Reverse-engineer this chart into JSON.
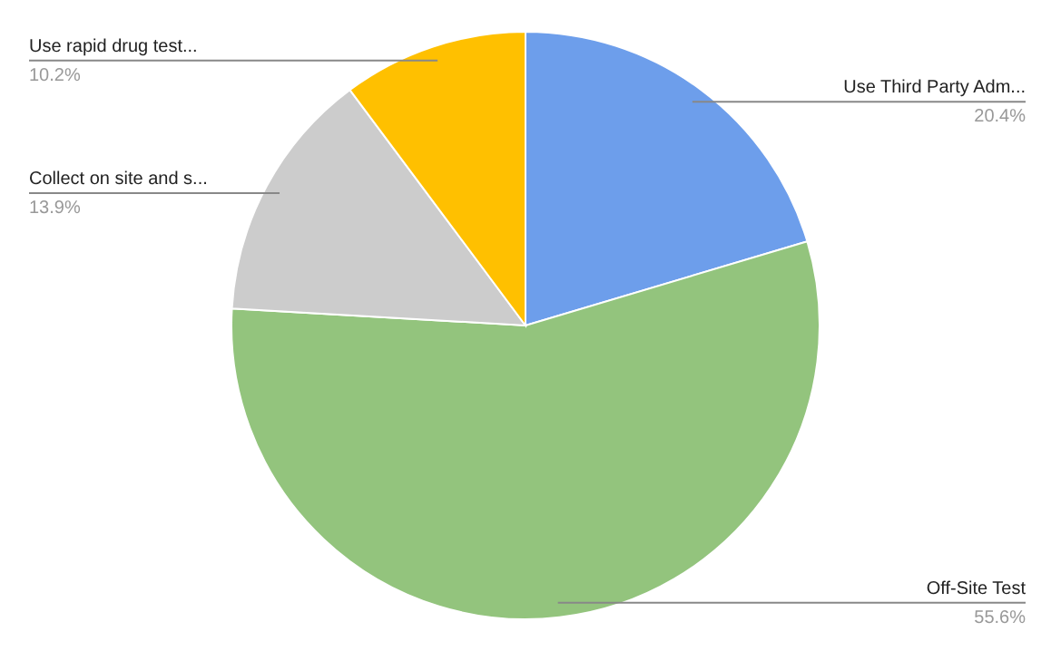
{
  "chart_data": {
    "type": "pie",
    "categories": [
      "Use Third Party Adm...",
      "Off-Site Test",
      "Collect on site and s...",
      "Use rapid drug test..."
    ],
    "values": [
      20.4,
      55.6,
      13.9,
      10.2
    ],
    "value_labels": [
      "20.4%",
      "55.6%",
      "13.9%",
      "10.2%"
    ],
    "colors": [
      "#6d9eeb",
      "#93c47d",
      "#cccccc",
      "#ffc000"
    ]
  }
}
